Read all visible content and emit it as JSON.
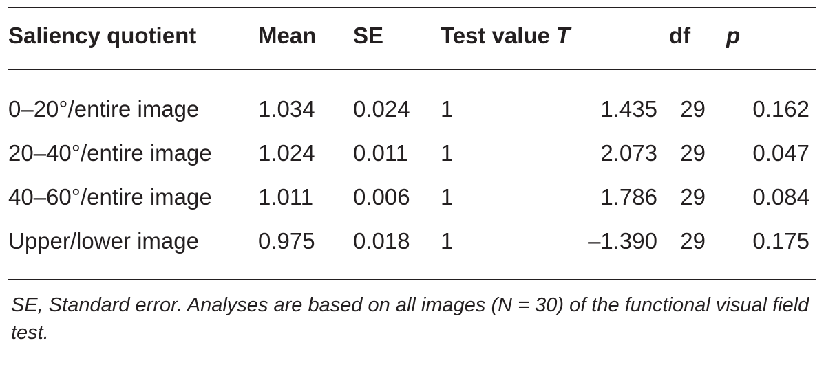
{
  "table": {
    "headers": {
      "label": "Saliency quotient",
      "mean": "Mean",
      "se": "SE",
      "test_value": "Test value",
      "t": "T",
      "df": "df",
      "p": "p"
    },
    "rows": [
      {
        "label": "0–20°/entire image",
        "mean": "1.034",
        "se": "0.024",
        "test_value": "1",
        "t": "1.435",
        "df": "29",
        "p": "0.162"
      },
      {
        "label": "20–40°/entire image",
        "mean": "1.024",
        "se": "0.011",
        "test_value": "1",
        "t": "2.073",
        "df": "29",
        "p": "0.047"
      },
      {
        "label": "40–60°/entire image",
        "mean": "1.011",
        "se": "0.006",
        "test_value": "1",
        "t": "1.786",
        "df": "29",
        "p": "0.084"
      },
      {
        "label": "Upper/lower image",
        "mean": "0.975",
        "se": "0.018",
        "test_value": "1",
        "t": "–1.390",
        "df": "29",
        "p": "0.175"
      }
    ]
  },
  "footnote": "SE, Standard error. Analyses are based on all images (N = 30) of the functional visual field test."
}
